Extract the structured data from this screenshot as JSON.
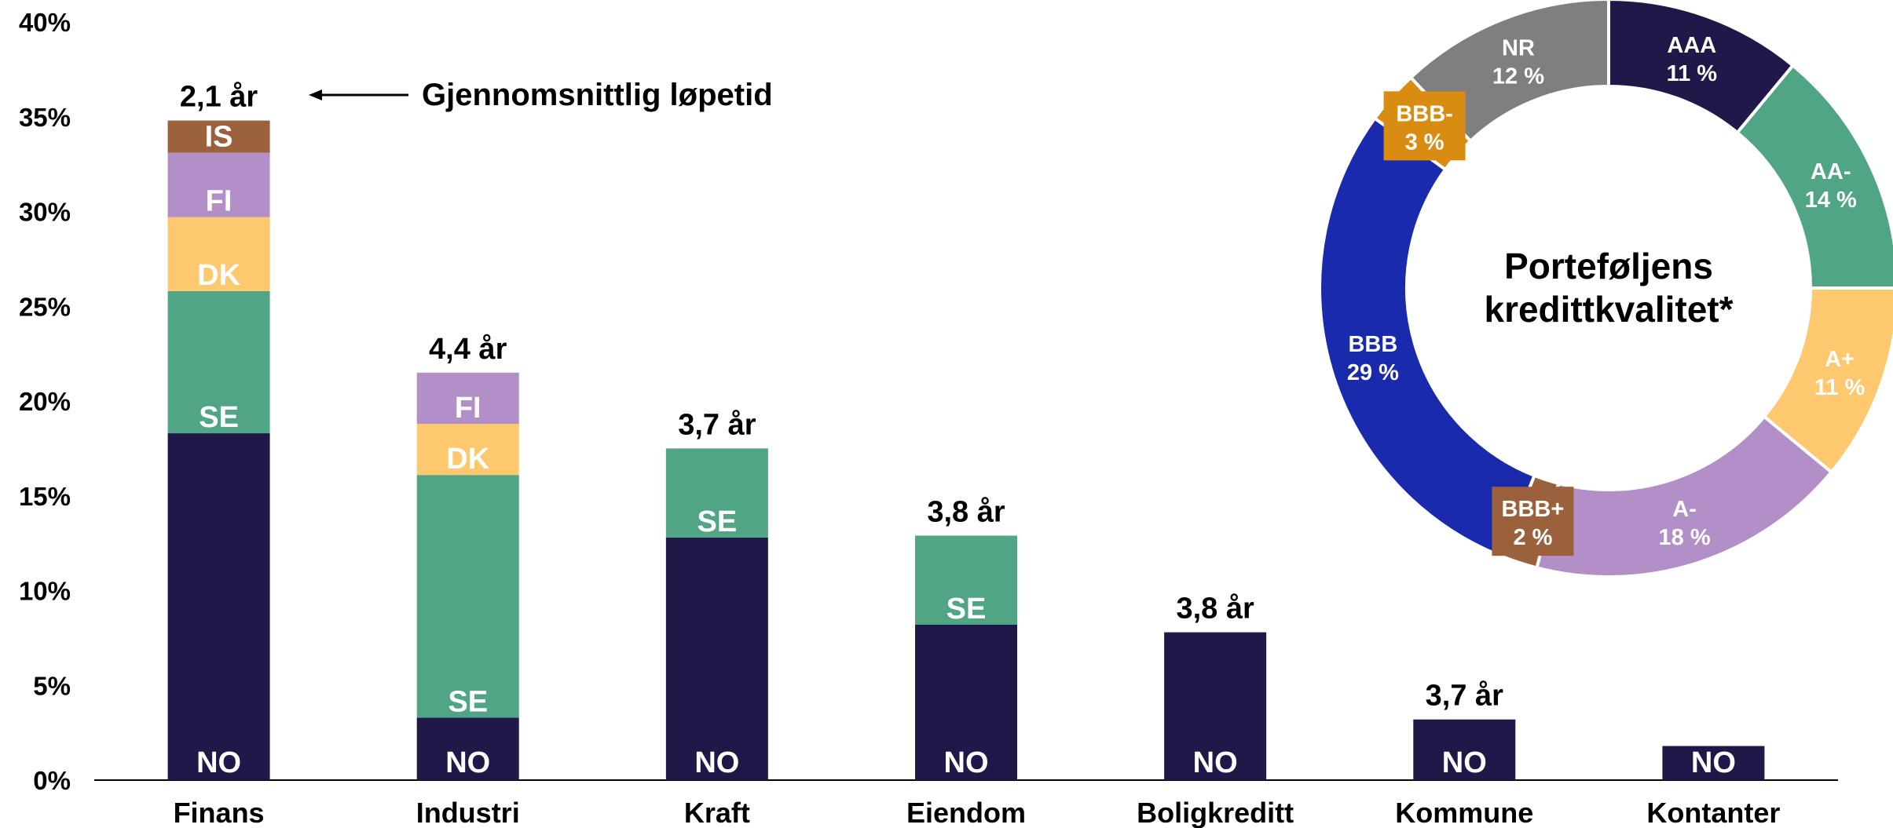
{
  "chart_data": [
    {
      "type": "bar",
      "stacked": true,
      "categories": [
        "Finans",
        "Industri",
        "Kraft",
        "Eiendom",
        "Boligkreditt",
        "Kommune",
        "Kontanter"
      ],
      "series": [
        {
          "name": "NO",
          "color": "#201848",
          "values": [
            18.3,
            3.3,
            12.8,
            8.2,
            7.8,
            3.2,
            1.8
          ]
        },
        {
          "name": "SE",
          "color": "#50a684",
          "values": [
            7.5,
            12.8,
            4.7,
            4.7,
            0,
            0,
            0
          ]
        },
        {
          "name": "DK",
          "color": "#fec86e",
          "values": [
            3.9,
            2.7,
            0,
            0,
            0,
            0,
            0
          ]
        },
        {
          "name": "FI",
          "color": "#b28fc6",
          "values": [
            3.4,
            2.7,
            0,
            0,
            0,
            0,
            0
          ]
        },
        {
          "name": "IS",
          "color": "#9b603c",
          "values": [
            1.7,
            0,
            0,
            0,
            0,
            0,
            0
          ]
        }
      ],
      "bar_top_labels": [
        "2,1 år",
        "4,4 år",
        "3,7 år",
        "3,8 år",
        "3,8 år",
        "3,7 år",
        ""
      ],
      "yticks": [
        "0%",
        "5%",
        "10%",
        "15%",
        "20%",
        "25%",
        "30%",
        "35%",
        "40%"
      ],
      "ylim": [
        0,
        40
      ],
      "annotation": "Gjennomsnittlig løpetid"
    },
    {
      "type": "pie",
      "donut": true,
      "center_title": [
        "Porteføljens",
        "kredittkvalitet*"
      ],
      "slices": [
        {
          "label": "AAA",
          "value": 11,
          "value_label": "11 %",
          "color": "#201848"
        },
        {
          "label": "AA-",
          "value": 14,
          "value_label": "14 %",
          "color": "#50a684"
        },
        {
          "label": "A+",
          "value": 11,
          "value_label": "11 %",
          "color": "#fec86e"
        },
        {
          "label": "A-",
          "value": 18,
          "value_label": "18 %",
          "color": "#b28fc6"
        },
        {
          "label": "BBB+",
          "value": 2,
          "value_label": "2 %",
          "color": "#9b603c"
        },
        {
          "label": "BBB",
          "value": 29,
          "value_label": "29 %",
          "color": "#1a2aad"
        },
        {
          "label": "BBB-",
          "value": 3,
          "value_label": "3 %",
          "color": "#d98c12"
        },
        {
          "label": "NR",
          "value": 12,
          "value_label": "12 %",
          "color": "#7f7f7f"
        }
      ]
    }
  ]
}
